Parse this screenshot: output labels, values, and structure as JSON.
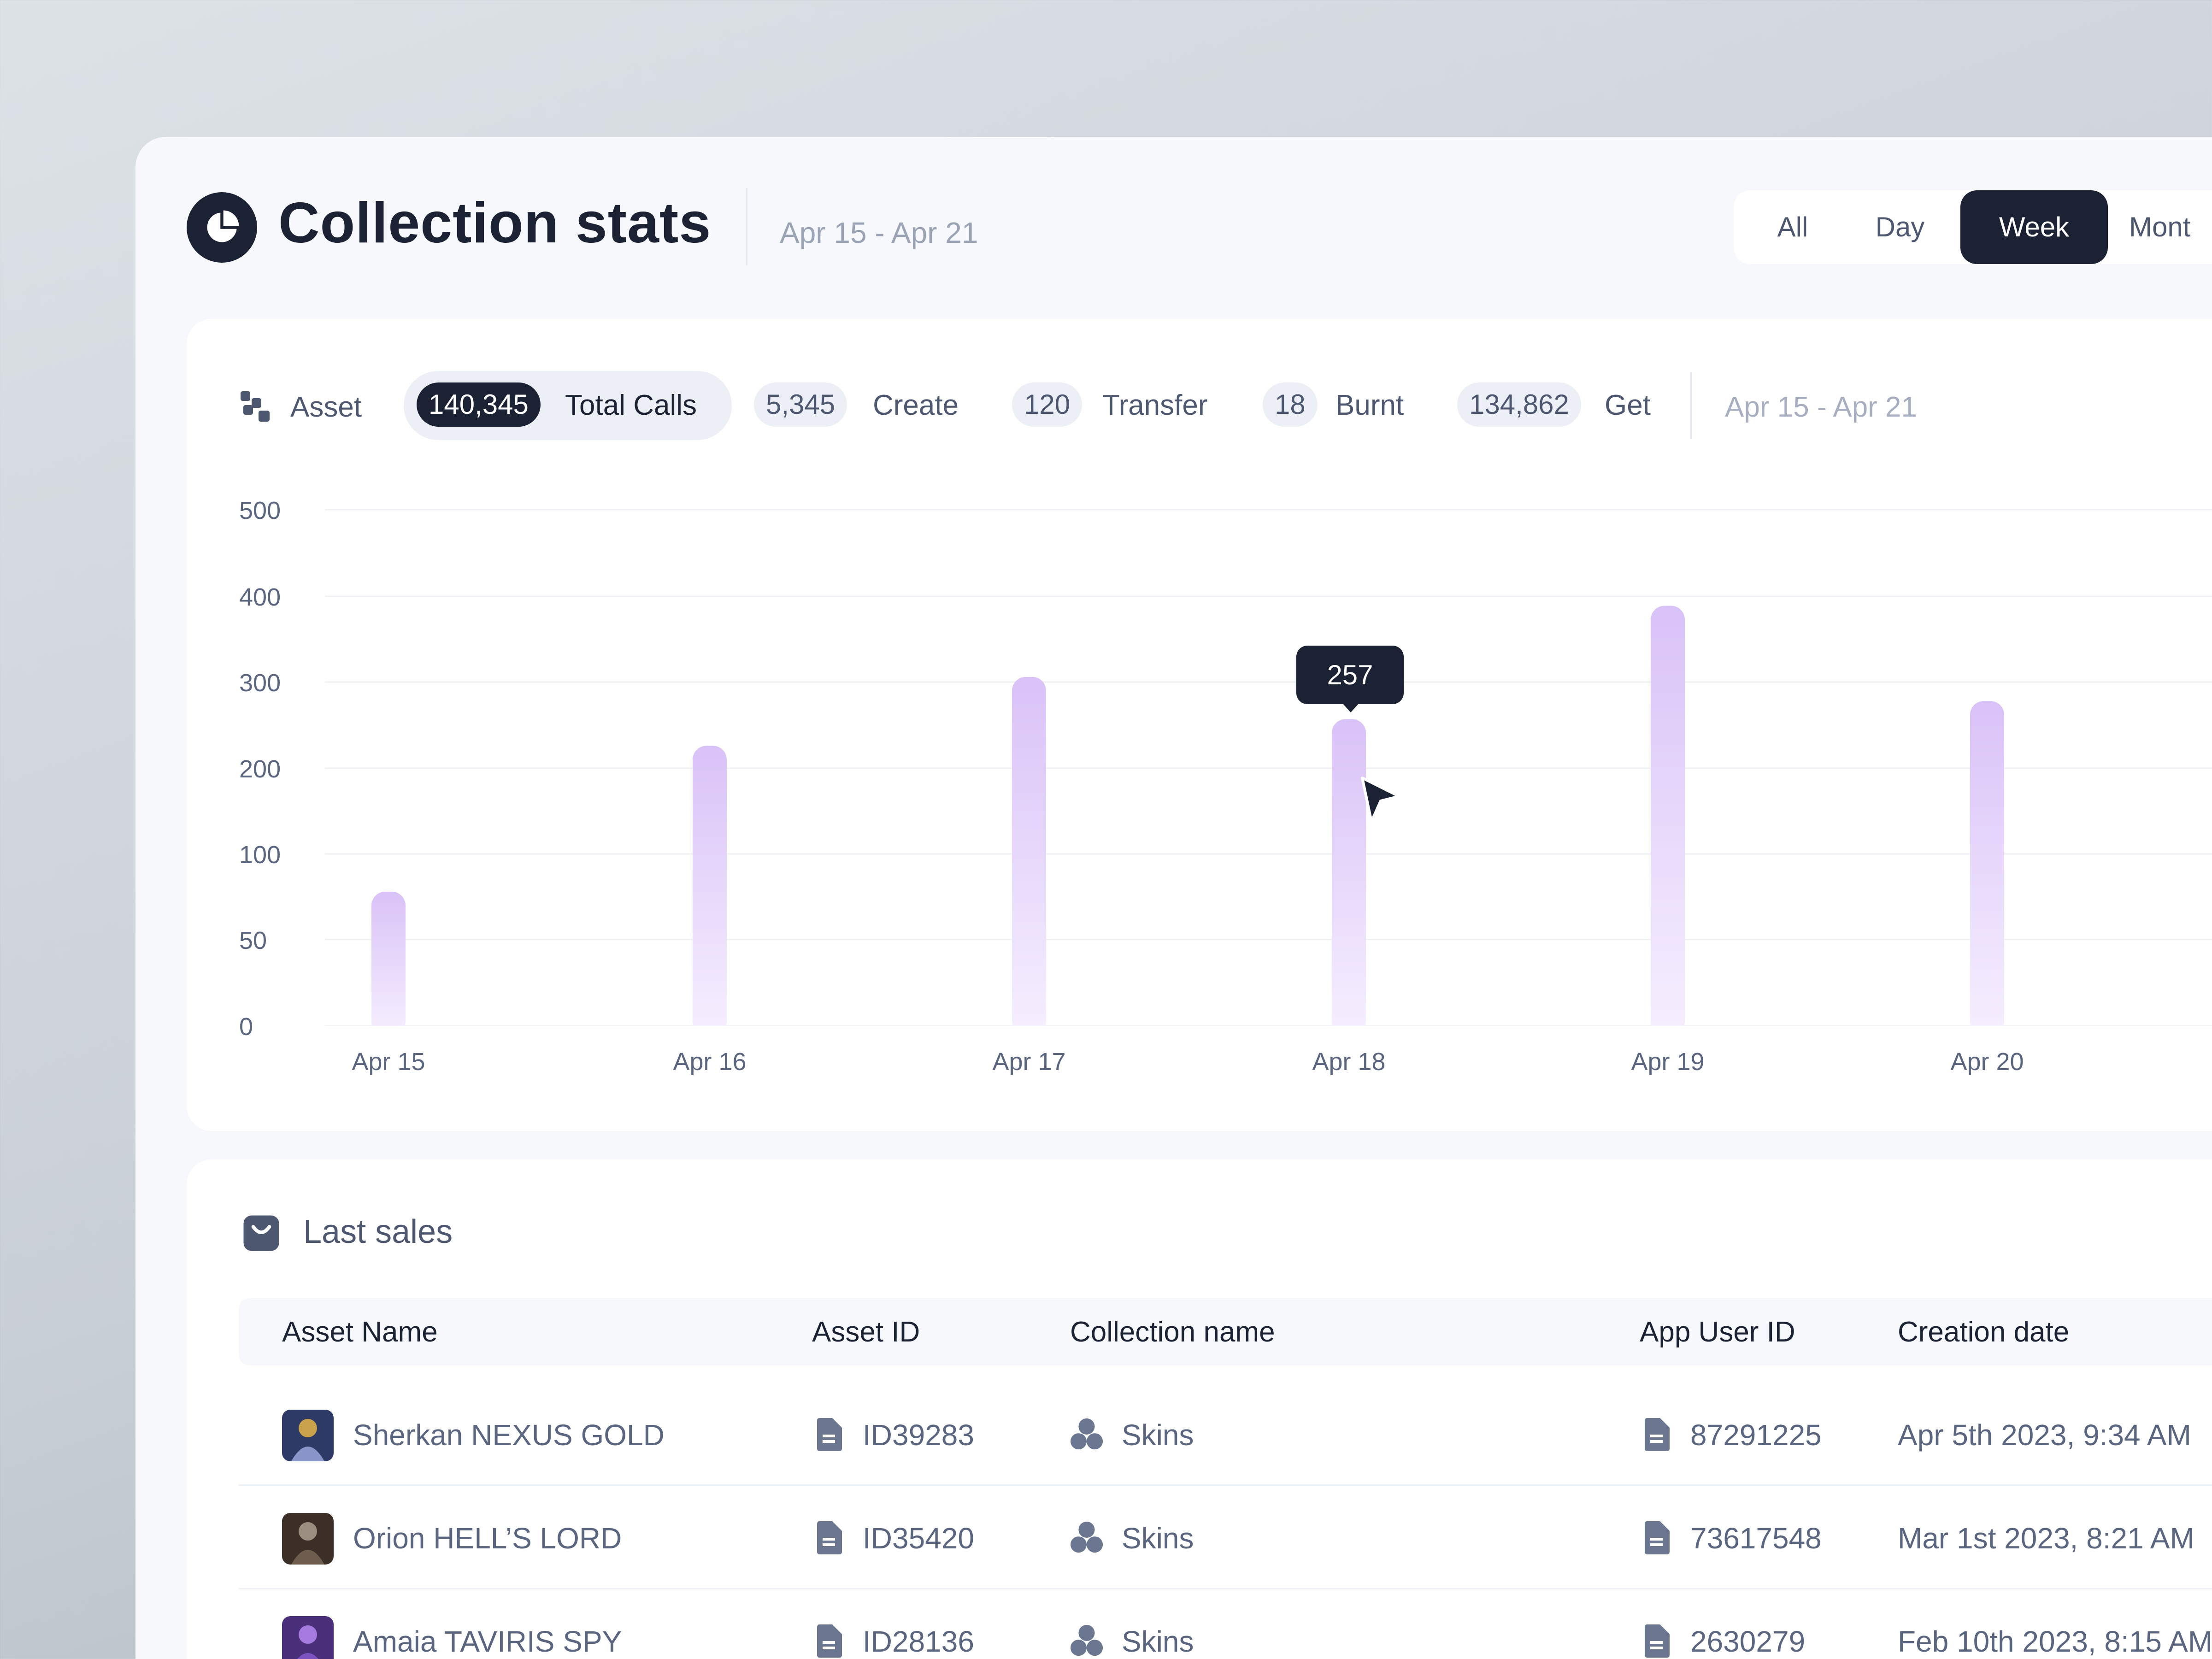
{
  "header": {
    "title": "Collection stats",
    "date_range": "Apr 15 - Apr 21",
    "logo_icon": "pie-chart-icon",
    "period_tabs": [
      {
        "label": "All",
        "active": false
      },
      {
        "label": "Day",
        "active": false
      },
      {
        "label": "Week",
        "active": true
      },
      {
        "label": "Mont",
        "active": false
      }
    ]
  },
  "stats": {
    "asset_label": "Asset",
    "asset_icon": "blocks-icon",
    "metrics": [
      {
        "count": "140,345",
        "label": "Total Calls",
        "selected": true
      },
      {
        "count": "5,345",
        "label": "Create",
        "selected": false
      },
      {
        "count": "120",
        "label": "Transfer",
        "selected": false
      },
      {
        "count": "18",
        "label": "Burnt",
        "selected": false
      },
      {
        "count": "134,862",
        "label": "Get",
        "selected": false
      }
    ],
    "date_range": "Apr 15 - Apr 21"
  },
  "chart_data": {
    "type": "bar",
    "categories": [
      "Apr 15",
      "Apr 16",
      "Apr 17",
      "Apr 18",
      "Apr 19",
      "Apr 20"
    ],
    "values": [
      78,
      226,
      306,
      257,
      389,
      278
    ],
    "y_ticks": [
      0,
      50,
      100,
      200,
      300,
      400,
      500
    ],
    "grid": true,
    "bar_color": "#d9c2f7",
    "tooltip": {
      "category": "Apr 18",
      "value": "257"
    }
  },
  "sales": {
    "title": "Last sales",
    "icon": "shopping-bag-icon",
    "columns": [
      "Asset Name",
      "Asset ID",
      "Collection name",
      "App User ID",
      "Creation date"
    ],
    "rows": [
      {
        "asset_name": "Sherkan NEXUS GOLD",
        "asset_id": "ID39283",
        "collection": "Skins",
        "user_id": "87291225",
        "created": "Apr 5th 2023, 9:34 AM",
        "avatar_color": "#3a4a78"
      },
      {
        "asset_name": "Orion HELL’S LORD",
        "asset_id": "ID35420",
        "collection": "Skins",
        "user_id": "73617548",
        "created": "Mar 1st 2023, 8:21 AM",
        "avatar_color": "#5a4a3e"
      },
      {
        "asset_name": "Amaia TAVIRIS SPY",
        "asset_id": "ID28136",
        "collection": "Skins",
        "user_id": "2630279",
        "created": "Feb 10th 2023, 8:15 AM",
        "avatar_color": "#5b3b8c"
      }
    ]
  }
}
